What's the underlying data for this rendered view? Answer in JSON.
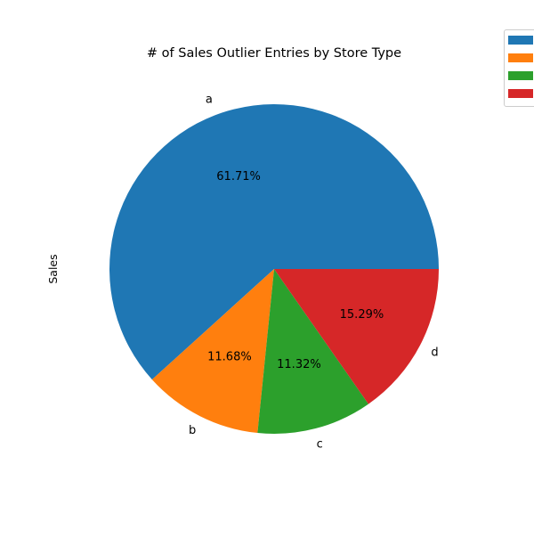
{
  "chart_data": {
    "type": "pie",
    "title": "# of Sales Outlier Entries by Store Type",
    "ylabel": "Sales",
    "labels": [
      "a",
      "b",
      "c",
      "d"
    ],
    "values": [
      61.71,
      11.68,
      11.32,
      15.29
    ],
    "value_labels": [
      "61.71%",
      "11.68%",
      "11.32%",
      "15.29%"
    ],
    "colors": [
      "#1f77b4",
      "#ff7f0e",
      "#2ca02c",
      "#d62728"
    ],
    "legend": {
      "placement": "top-right",
      "entries": [
        "",
        "",
        "",
        ""
      ]
    },
    "start_angle_deg": 0,
    "direction": "counterclockwise"
  }
}
